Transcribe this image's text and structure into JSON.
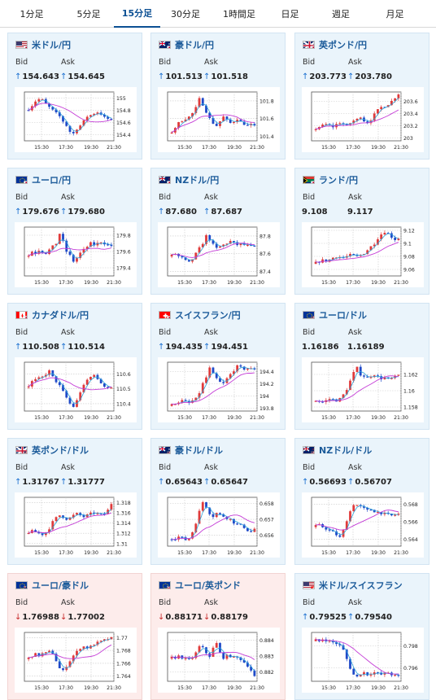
{
  "tabs": [
    "1分足",
    "5分足",
    "15分足",
    "30分足",
    "1時間足",
    "日足",
    "週足",
    "月足"
  ],
  "active_tab": 2,
  "colors": {
    "accent": "#0b4f93",
    "title": "#1c5b9a",
    "up_candle": "#e03a3a",
    "down_candle": "#1f49c8",
    "ma_short": "#2aa3d8",
    "ma_long": "#c43bd6",
    "card_bg": "#eaf4fb",
    "card_bg_down": "#fdeceb"
  },
  "labels": {
    "bid": "Bid",
    "ask": "Ask"
  },
  "cards": [
    {
      "pair": "米ドル/円",
      "flag": "us-jp-flag-icon",
      "bid": "154.643",
      "ask": "154.645",
      "bid_dir": "up",
      "ask_dir": "up",
      "theme": "blue",
      "chart_data": {
        "type": "candlestick",
        "x_ticks": [
          "15:30",
          "17:30",
          "19:30",
          "21:30"
        ],
        "y_ticks": [
          "155",
          "154.8",
          "154.6",
          "154.4"
        ],
        "ylim": [
          154.3,
          155.1
        ],
        "trend": [
          154.82,
          154.88,
          154.95,
          154.98,
          154.97,
          154.9,
          154.85,
          154.8,
          154.75,
          154.7,
          154.62,
          154.55,
          154.45,
          154.42,
          154.5,
          154.55,
          154.62,
          154.7,
          154.72,
          154.75,
          154.77,
          154.74,
          154.68,
          154.66,
          154.64
        ]
      }
    },
    {
      "pair": "豪ドル/円",
      "flag": "au-jp-flag-icon",
      "bid": "101.513",
      "ask": "101.518",
      "bid_dir": "up",
      "ask_dir": "up",
      "theme": "blue",
      "chart_data": {
        "type": "candlestick",
        "x_ticks": [
          "15:30",
          "17:30",
          "19:30",
          "21:30"
        ],
        "y_ticks": [
          "101.8",
          "101.6",
          "101.4"
        ],
        "ylim": [
          101.35,
          101.9
        ],
        "trend": [
          101.45,
          101.5,
          101.55,
          101.58,
          101.6,
          101.62,
          101.66,
          101.72,
          101.82,
          101.76,
          101.68,
          101.6,
          101.55,
          101.52,
          101.57,
          101.62,
          101.58,
          101.55,
          101.57,
          101.6,
          101.56,
          101.54,
          101.52,
          101.53,
          101.51
        ]
      }
    },
    {
      "pair": "英ポンド/円",
      "flag": "gb-jp-flag-icon",
      "bid": "203.773",
      "ask": "203.780",
      "bid_dir": "up",
      "ask_dir": "up",
      "theme": "blue",
      "chart_data": {
        "type": "candlestick",
        "x_ticks": [
          "15:30",
          "17:30",
          "19:30",
          "21:30"
        ],
        "y_ticks": [
          "203.6",
          "203.4",
          "203.2",
          "203"
        ],
        "ylim": [
          202.95,
          203.75
        ],
        "trend": [
          203.15,
          203.18,
          203.2,
          203.22,
          203.2,
          203.18,
          203.22,
          203.25,
          203.22,
          203.2,
          203.24,
          203.28,
          203.3,
          203.35,
          203.28,
          203.25,
          203.3,
          203.38,
          203.45,
          203.5,
          203.52,
          203.55,
          203.6,
          203.66,
          203.72
        ]
      }
    },
    {
      "pair": "ユーロ/円",
      "flag": "eu-jp-flag-icon",
      "bid": "179.676",
      "ask": "179.680",
      "bid_dir": "up",
      "ask_dir": "up",
      "theme": "blue",
      "chart_data": {
        "type": "candlestick",
        "x_ticks": [
          "15:30",
          "17:30",
          "19:30",
          "21:30"
        ],
        "y_ticks": [
          "179.8",
          "179.6",
          "179.4"
        ],
        "ylim": [
          179.3,
          179.9
        ],
        "trend": [
          179.55,
          179.6,
          179.58,
          179.62,
          179.6,
          179.58,
          179.62,
          179.66,
          179.7,
          179.82,
          179.72,
          179.6,
          179.55,
          179.48,
          179.52,
          179.58,
          179.62,
          179.66,
          179.7,
          179.68,
          179.7,
          179.72,
          179.7,
          179.68,
          179.67
        ]
      }
    },
    {
      "pair": "NZドル/円",
      "flag": "nz-jp-flag-icon",
      "bid": "87.680",
      "ask": "87.687",
      "bid_dir": "up",
      "ask_dir": "up",
      "theme": "blue",
      "chart_data": {
        "type": "candlestick",
        "x_ticks": [
          "15:30",
          "17:30",
          "19:30",
          "21:30"
        ],
        "y_ticks": [
          "87.8",
          "87.6",
          "87.4"
        ],
        "ylim": [
          87.35,
          87.9
        ],
        "trend": [
          87.58,
          87.6,
          87.57,
          87.55,
          87.52,
          87.5,
          87.54,
          87.6,
          87.66,
          87.72,
          87.8,
          87.76,
          87.7,
          87.66,
          87.68,
          87.7,
          87.72,
          87.74,
          87.72,
          87.7,
          87.71,
          87.7,
          87.69,
          87.68,
          87.68
        ]
      }
    },
    {
      "pair": "ランド/円",
      "flag": "za-jp-flag-icon",
      "bid": "9.108",
      "ask": "9.117",
      "bid_dir": "none",
      "ask_dir": "none",
      "theme": "blue",
      "chart_data": {
        "type": "candlestick",
        "x_ticks": [
          "15:30",
          "17:30",
          "19:30",
          "21:30"
        ],
        "y_ticks": [
          "9.12",
          "9.1",
          "9.08",
          "9.06"
        ],
        "ylim": [
          9.05,
          9.125
        ],
        "trend": [
          9.07,
          9.072,
          9.074,
          9.073,
          9.075,
          9.078,
          9.08,
          9.079,
          9.078,
          9.08,
          9.082,
          9.081,
          9.08,
          9.082,
          9.085,
          9.09,
          9.095,
          9.1,
          9.108,
          9.114,
          9.118,
          9.115,
          9.11,
          9.106,
          9.108
        ]
      }
    },
    {
      "pair": "カナダドル/円",
      "flag": "ca-jp-flag-icon",
      "bid": "110.508",
      "ask": "110.514",
      "bid_dir": "up",
      "ask_dir": "up",
      "theme": "blue",
      "chart_data": {
        "type": "candlestick",
        "x_ticks": [
          "15:30",
          "17:30",
          "19:30",
          "21:30"
        ],
        "y_ticks": [
          "110.6",
          "110.5",
          "110.4"
        ],
        "ylim": [
          110.35,
          110.68
        ],
        "trend": [
          110.52,
          110.55,
          110.56,
          110.57,
          110.58,
          110.6,
          110.62,
          110.58,
          110.55,
          110.52,
          110.48,
          110.44,
          110.4,
          110.38,
          110.42,
          110.48,
          110.52,
          110.56,
          110.58,
          110.6,
          110.56,
          110.54,
          110.52,
          110.51,
          110.51
        ]
      }
    },
    {
      "pair": "スイスフラン/円",
      "flag": "ch-jp-flag-icon",
      "bid": "194.435",
      "ask": "194.451",
      "bid_dir": "up",
      "ask_dir": "up",
      "theme": "blue",
      "chart_data": {
        "type": "candlestick",
        "x_ticks": [
          "15:30",
          "17:30",
          "19:30",
          "21:30"
        ],
        "y_ticks": [
          "194.4",
          "194.2",
          "194",
          "193.8"
        ],
        "ylim": [
          193.75,
          194.55
        ],
        "trend": [
          193.85,
          193.88,
          193.9,
          193.92,
          193.9,
          193.88,
          193.92,
          193.95,
          194.05,
          194.2,
          194.3,
          194.45,
          194.35,
          194.28,
          194.22,
          194.2,
          194.28,
          194.35,
          194.42,
          194.48,
          194.46,
          194.44,
          194.45,
          194.44,
          194.44
        ]
      }
    },
    {
      "pair": "ユーロ/ドル",
      "flag": "eu-us-flag-icon",
      "bid": "1.16186",
      "ask": "1.16189",
      "bid_dir": "none",
      "ask_dir": "none",
      "theme": "blue",
      "chart_data": {
        "type": "candlestick",
        "x_ticks": [
          "15:30",
          "17:30",
          "19:30",
          "21:30"
        ],
        "y_ticks": [
          "1.162",
          "1.16",
          "1.158"
        ],
        "ylim": [
          1.1575,
          1.1635
        ],
        "trend": [
          1.1588,
          1.1587,
          1.1586,
          1.1588,
          1.159,
          1.1589,
          1.1588,
          1.159,
          1.1595,
          1.1602,
          1.1612,
          1.1622,
          1.1628,
          1.162,
          1.1618,
          1.1616,
          1.1618,
          1.162,
          1.1617,
          1.1615,
          1.1616,
          1.1614,
          1.1615,
          1.1617,
          1.1619
        ]
      }
    },
    {
      "pair": "英ポンド/ドル",
      "flag": "gb-us-flag-icon",
      "bid": "1.31767",
      "ask": "1.31777",
      "bid_dir": "up",
      "ask_dir": "up",
      "theme": "blue",
      "chart_data": {
        "type": "candlestick",
        "x_ticks": [
          "15:30",
          "17:30",
          "19:30",
          "21:30"
        ],
        "y_ticks": [
          "1.318",
          "1.316",
          "1.314",
          "1.312",
          "1.31"
        ],
        "ylim": [
          1.3095,
          1.319
        ],
        "trend": [
          1.3122,
          1.3124,
          1.3122,
          1.312,
          1.3118,
          1.3122,
          1.313,
          1.3142,
          1.315,
          1.3155,
          1.3152,
          1.3148,
          1.315,
          1.3155,
          1.3158,
          1.3155,
          1.3152,
          1.3155,
          1.3158,
          1.316,
          1.3158,
          1.3156,
          1.3158,
          1.3165,
          1.3178
        ]
      }
    },
    {
      "pair": "豪ドル/ドル",
      "flag": "au-us-flag-icon",
      "bid": "0.65643",
      "ask": "0.65647",
      "bid_dir": "up",
      "ask_dir": "up",
      "theme": "blue",
      "chart_data": {
        "type": "candlestick",
        "x_ticks": [
          "15:30",
          "17:30",
          "19:30",
          "21:30"
        ],
        "y_ticks": [
          "0.658",
          "0.657",
          "0.656"
        ],
        "ylim": [
          0.6553,
          0.6584
        ],
        "trend": [
          0.6558,
          0.6558,
          0.6559,
          0.6558,
          0.6557,
          0.6558,
          0.6562,
          0.6568,
          0.6575,
          0.6581,
          0.6578,
          0.6574,
          0.6572,
          0.6574,
          0.6573,
          0.6572,
          0.6571,
          0.657,
          0.6568,
          0.6567,
          0.6566,
          0.6565,
          0.6563,
          0.6562,
          0.6564
        ]
      }
    },
    {
      "pair": "NZドル/ドル",
      "flag": "nz-us-flag-icon",
      "bid": "0.56693",
      "ask": "0.56707",
      "bid_dir": "up",
      "ask_dir": "up",
      "theme": "blue",
      "chart_data": {
        "type": "candlestick",
        "x_ticks": [
          "15:30",
          "17:30",
          "19:30",
          "21:30"
        ],
        "y_ticks": [
          "0.568",
          "0.566",
          "0.564"
        ],
        "ylim": [
          0.5632,
          0.5688
        ],
        "trend": [
          0.5655,
          0.5656,
          0.5654,
          0.5652,
          0.565,
          0.5648,
          0.5645,
          0.5642,
          0.565,
          0.5662,
          0.5672,
          0.568,
          0.5679,
          0.5677,
          0.5675,
          0.5673,
          0.5674,
          0.5672,
          0.5671,
          0.567,
          0.5669,
          0.5668,
          0.5667,
          0.5668,
          0.5669
        ]
      }
    },
    {
      "pair": "ユーロ/豪ドル",
      "flag": "eu-au-flag-icon",
      "bid": "1.76988",
      "ask": "1.77002",
      "bid_dir": "down",
      "ask_dir": "down",
      "theme": "pink",
      "chart_data": {
        "type": "candlestick",
        "x_ticks": [
          "15:30",
          "17:30",
          "19:30",
          "21:30"
        ],
        "y_ticks": [
          "1.77",
          "1.768",
          "1.766",
          "1.764"
        ],
        "ylim": [
          1.7632,
          1.7708
        ],
        "trend": [
          1.7668,
          1.7672,
          1.7674,
          1.7672,
          1.7675,
          1.7676,
          1.7678,
          1.7676,
          1.7664,
          1.7652,
          1.7648,
          1.7656,
          1.7664,
          1.7672,
          1.7678,
          1.7684,
          1.7686,
          1.7684,
          1.7686,
          1.769,
          1.7692,
          1.7694,
          1.7696,
          1.7698,
          1.7699
        ]
      }
    },
    {
      "pair": "ユーロ/英ポンド",
      "flag": "eu-gb-flag-icon",
      "bid": "0.88171",
      "ask": "0.88179",
      "bid_dir": "down",
      "ask_dir": "down",
      "theme": "pink",
      "chart_data": {
        "type": "candlestick",
        "x_ticks": [
          "15:30",
          "17:30",
          "19:30",
          "21:30"
        ],
        "y_ticks": [
          "0.884",
          "0.883",
          "0.882"
        ],
        "ylim": [
          0.8814,
          0.8845
        ],
        "trend": [
          0.8829,
          0.8829,
          0.883,
          0.8829,
          0.8828,
          0.8828,
          0.8829,
          0.8832,
          0.8836,
          0.8835,
          0.8832,
          0.883,
          0.8835,
          0.8838,
          0.8832,
          0.8829,
          0.883,
          0.883,
          0.8829,
          0.8829,
          0.8828,
          0.8826,
          0.8824,
          0.8821,
          0.8817
        ]
      }
    },
    {
      "pair": "米ドル/スイスフラン",
      "flag": "us-ch-flag-icon",
      "bid": "0.79525",
      "ask": "0.79540",
      "bid_dir": "up",
      "ask_dir": "up",
      "theme": "blue",
      "chart_data": {
        "type": "candlestick",
        "x_ticks": [
          "15:30",
          "17:30",
          "19:30",
          "21:30"
        ],
        "y_ticks": [
          "0.798",
          "0.796"
        ],
        "ylim": [
          0.7948,
          0.7992
        ],
        "trend": [
          0.7985,
          0.7984,
          0.7986,
          0.7985,
          0.7984,
          0.7983,
          0.7982,
          0.798,
          0.7976,
          0.7968,
          0.796,
          0.7954,
          0.7952,
          0.7955,
          0.7956,
          0.7954,
          0.7955,
          0.7956,
          0.7955,
          0.7954,
          0.7955,
          0.7956,
          0.7954,
          0.7953,
          0.7953
        ]
      }
    }
  ]
}
